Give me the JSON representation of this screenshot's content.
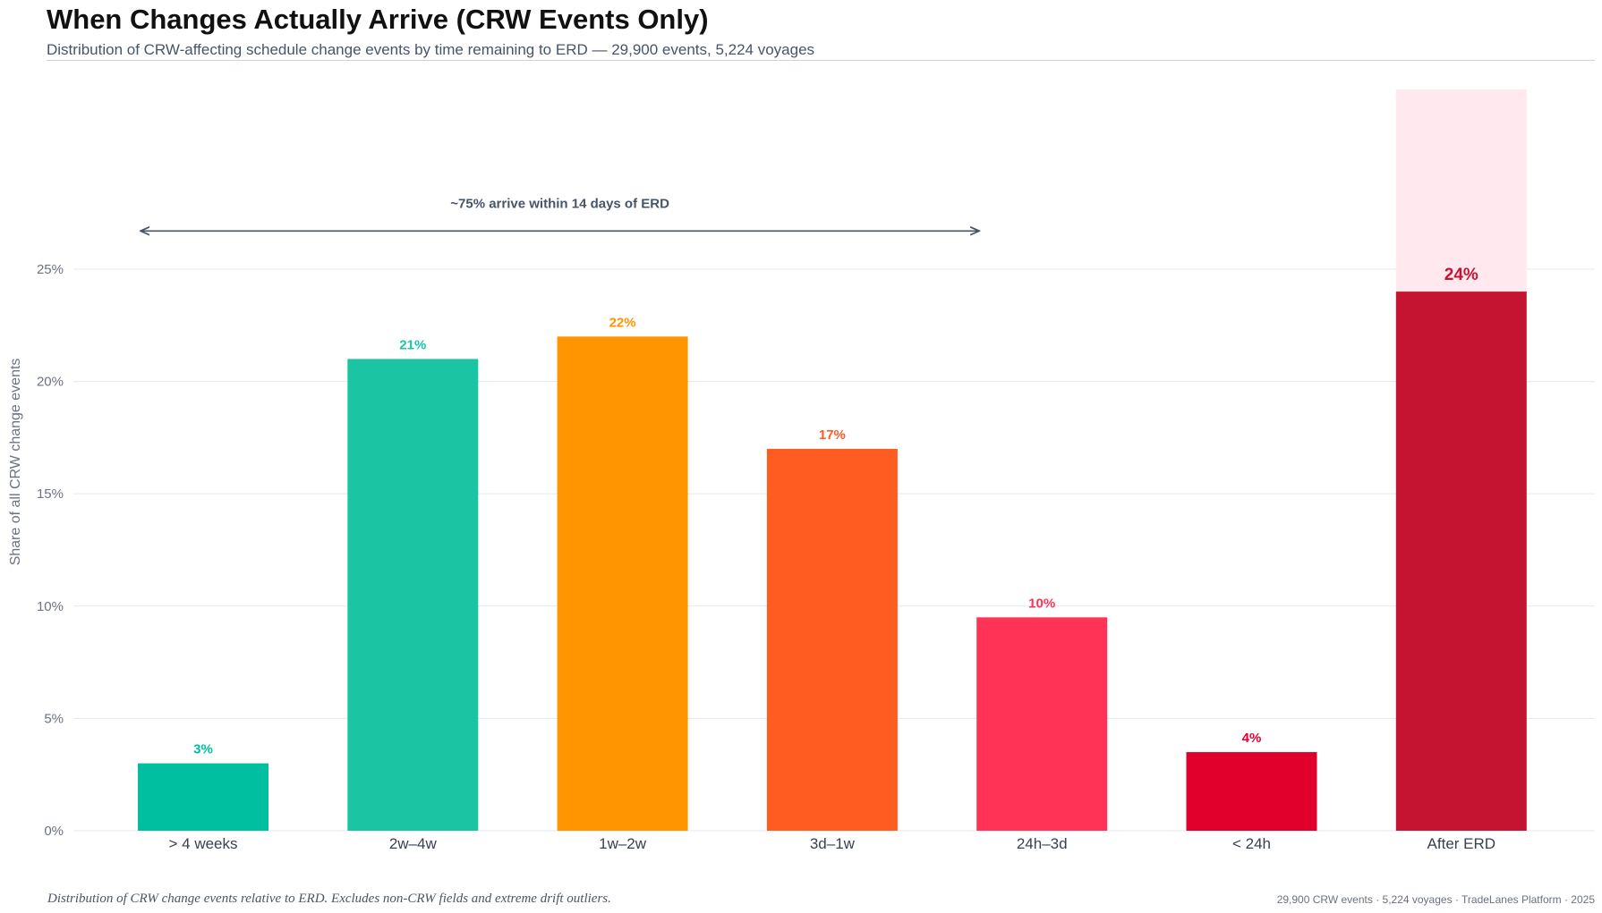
{
  "header": {
    "title": "When Changes Actually Arrive (CRW Events Only)",
    "subtitle": "Distribution of CRW-affecting schedule change events by time remaining to ERD — 29,900 events, 5,224 voyages"
  },
  "chart_data": {
    "type": "bar",
    "title": "When Changes Actually Arrive (CRW Events Only)",
    "ylabel": "Share of all CRW change events",
    "xlabel": "",
    "ylim": [
      0,
      33
    ],
    "yticks": [
      0,
      5,
      10,
      15,
      20,
      25
    ],
    "ytick_labels": [
      "0%",
      "5%",
      "10%",
      "15%",
      "20%",
      "25%"
    ],
    "grid": true,
    "categories": [
      "> 4 weeks",
      "2w–4w",
      "1w–2w",
      "3d–1w",
      "24h–3d",
      "< 24h",
      "After ERD"
    ],
    "values": [
      3,
      21,
      22,
      17,
      9.5,
      3.5,
      24
    ],
    "labels": [
      "3%",
      "21%",
      "22%",
      "17%",
      "10%",
      "4%",
      "24%"
    ],
    "colors": [
      "#00bfa0",
      "#1bc4a2",
      "#ff9500",
      "#ff5c22",
      "#ff3355",
      "#e0002b",
      "#c51432"
    ],
    "highlight": {
      "category": "After ERD",
      "background_top": 33,
      "background_color": "#ffe9ee"
    },
    "annotation": {
      "text": "~75% arrive within 14 days of ERD",
      "from": "> 4 weeks",
      "to": "24h–3d",
      "y": 26.7
    }
  },
  "footer": {
    "note": "Distribution of CRW change events relative to ERD. Excludes non-CRW fields and extreme drift outliers.",
    "source": "29,900 CRW events · 5,224 voyages · TradeLanes Platform · 2025"
  }
}
